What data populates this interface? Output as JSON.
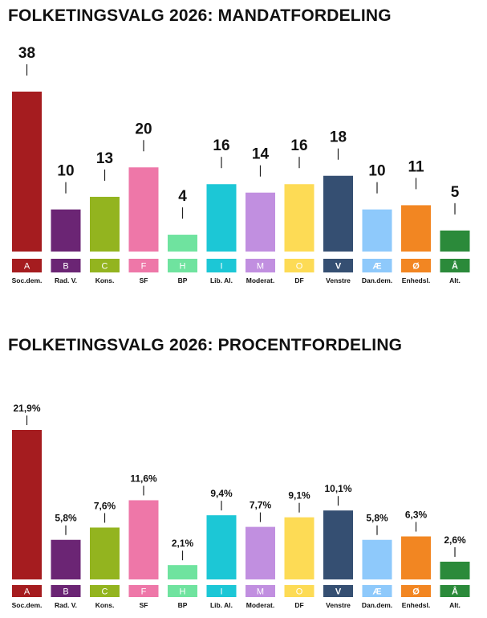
{
  "chart_data": [
    {
      "type": "bar",
      "title": "FOLKETINGSVALG 2026: MANDATFORDELING",
      "parties": [
        {
          "code": "A",
          "name": "Soc.dem.",
          "value_label": "38",
          "color": "#a51c1f"
        },
        {
          "code": "B",
          "name": "Rad. V.",
          "value_label": "10",
          "color": "#6b2574"
        },
        {
          "code": "C",
          "name": "Kons.",
          "value_label": "13",
          "color": "#93b41f"
        },
        {
          "code": "F",
          "name": "SF",
          "value_label": "20",
          "color": "#ee77a8"
        },
        {
          "code": "H",
          "name": "BP",
          "value_label": "4",
          "color": "#6fe39f"
        },
        {
          "code": "I",
          "name": "Lib. Al.",
          "value_label": "16",
          "color": "#1cc7d6"
        },
        {
          "code": "M",
          "name": "Moderat.",
          "value_label": "14",
          "color": "#c18fe0"
        },
        {
          "code": "O",
          "name": "DF",
          "value_label": "16",
          "color": "#fddb55"
        },
        {
          "code": "V",
          "name": "Venstre",
          "value_label": "18",
          "color": "#354f72"
        },
        {
          "code": "Æ",
          "name": "Dan.dem.",
          "value_label": "10",
          "color": "#8ec9fb"
        },
        {
          "code": "Ø",
          "name": "Enhedsl.",
          "value_label": "11",
          "color": "#f28622"
        },
        {
          "code": "Å",
          "name": "Alt.",
          "value_label": "5",
          "color": "#2b8a3a"
        }
      ],
      "values": [
        38,
        10,
        13,
        20,
        4,
        16,
        14,
        16,
        18,
        10,
        11,
        5
      ],
      "ylim": [
        0,
        38
      ]
    },
    {
      "type": "bar",
      "title": "FOLKETINGSVALG 2026: PROCENTFORDELING",
      "parties": [
        {
          "code": "A",
          "name": "Soc.dem.",
          "value_label": "21,9%",
          "color": "#a51c1f"
        },
        {
          "code": "B",
          "name": "Rad. V.",
          "value_label": "5,8%",
          "color": "#6b2574"
        },
        {
          "code": "C",
          "name": "Kons.",
          "value_label": "7,6%",
          "color": "#93b41f"
        },
        {
          "code": "F",
          "name": "SF",
          "value_label": "11,6%",
          "color": "#ee77a8"
        },
        {
          "code": "H",
          "name": "BP",
          "value_label": "2,1%",
          "color": "#6fe39f"
        },
        {
          "code": "I",
          "name": "Lib. Al.",
          "value_label": "9,4%",
          "color": "#1cc7d6"
        },
        {
          "code": "M",
          "name": "Moderat.",
          "value_label": "7,7%",
          "color": "#c18fe0"
        },
        {
          "code": "O",
          "name": "DF",
          "value_label": "9,1%",
          "color": "#fddb55"
        },
        {
          "code": "V",
          "name": "Venstre",
          "value_label": "10,1%",
          "color": "#354f72"
        },
        {
          "code": "Æ",
          "name": "Dan.dem.",
          "value_label": "5,8%",
          "color": "#8ec9fb"
        },
        {
          "code": "Ø",
          "name": "Enhedsl.",
          "value_label": "6,3%",
          "color": "#f28622"
        },
        {
          "code": "Å",
          "name": "Alt.",
          "value_label": "2,6%",
          "color": "#2b8a3a"
        }
      ],
      "values": [
        21.9,
        5.8,
        7.6,
        11.6,
        2.1,
        9.4,
        7.7,
        9.1,
        10.1,
        5.8,
        6.3,
        2.6
      ],
      "ylim": [
        0,
        21.9
      ]
    }
  ]
}
